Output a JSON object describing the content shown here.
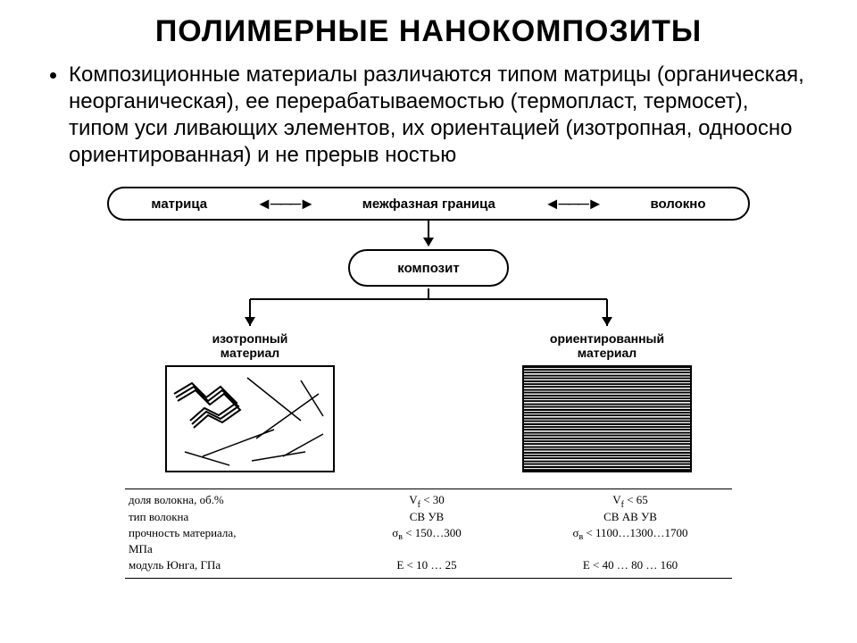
{
  "title": "ПОЛИМЕРНЫЕ НАНОКОМПОЗИТЫ",
  "paragraph": "Композиционные материалы различаются типом матрицы (органическая, неорганическая), ее перерабатываемостью (термопласт, термосет), типом уси ливающих элементов, их ориентацией (изотропная, одноосно ориентированная) и не прерыв ностью",
  "diagram": {
    "top": {
      "left": "матрица",
      "center": "межфазная граница",
      "right": "волокно"
    },
    "mid": "композит",
    "branches": {
      "left_label": "изотропный\nматериал",
      "right_label": "ориентированный\nматериал"
    },
    "colors": {
      "stroke": "#000000",
      "background": "#ffffff"
    }
  },
  "properties": {
    "rows": [
      {
        "label": "доля волокна, об.%",
        "iso": "Vf < 30",
        "ori": "Vf < 65"
      },
      {
        "label": "тип волокна",
        "iso": "СВ    УВ",
        "ori": "СВ    АВ    УВ"
      },
      {
        "label": "прочность материала,",
        "iso": "σв < 150…300",
        "ori": "σв < 1100…1300…1700"
      },
      {
        "label": "     МПа",
        "iso": "",
        "ori": ""
      },
      {
        "label": "модуль Юнга, ГПа",
        "iso": "E < 10 … 25",
        "ori": "E < 40 … 80 … 160"
      }
    ]
  }
}
